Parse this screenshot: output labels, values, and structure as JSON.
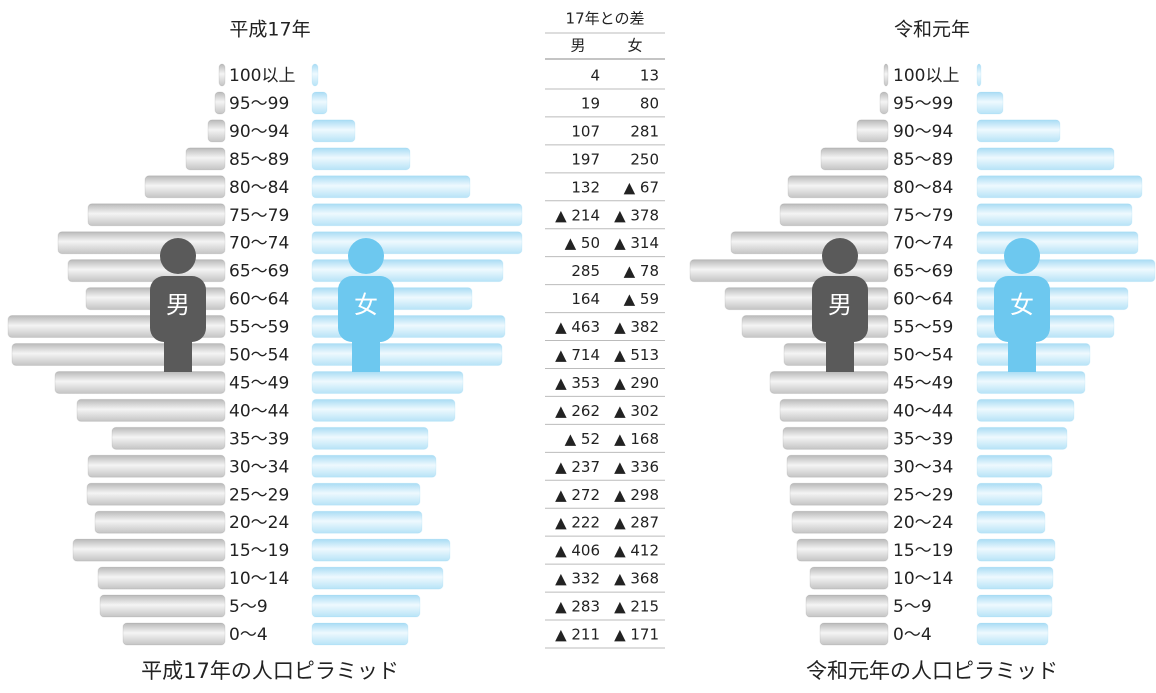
{
  "chart_data": [
    {
      "type": "pyramid",
      "title": "平成17年",
      "caption": "平成17年の人口ピラミッド",
      "categories": [
        "100以上",
        "95～99",
        "90～94",
        "85～89",
        "80～84",
        "75～79",
        "70～74",
        "65～69",
        "60～64",
        "55～59",
        "50～54",
        "45～49",
        "40～44",
        "35～39",
        "30～34",
        "25～29",
        "20～24",
        "15～19",
        "10～14",
        "5～9",
        "0～4"
      ],
      "series": [
        {
          "name": "男",
          "color": "#5a5a5a",
          "values": [
            6,
            10,
            17,
            39,
            80,
            137,
            167,
            157,
            139,
            217,
            213,
            170,
            148,
            113,
            137,
            138,
            130,
            152,
            127,
            125,
            102
          ]
        },
        {
          "name": "女",
          "color": "#6dc8ef",
          "values": [
            6,
            15,
            43,
            98,
            158,
            210,
            210,
            191,
            160,
            193,
            190,
            151,
            143,
            116,
            124,
            108,
            110,
            138,
            131,
            108,
            96
          ]
        }
      ]
    },
    {
      "type": "pyramid",
      "title": "令和元年",
      "caption": "令和元年の人口ピラミッド",
      "categories": [
        "100以上",
        "95～99",
        "90～94",
        "85～89",
        "80～84",
        "75～79",
        "70～74",
        "65～69",
        "60～64",
        "55～59",
        "50～54",
        "45～49",
        "40～44",
        "35～39",
        "30～34",
        "25～29",
        "20～24",
        "15～19",
        "10～14",
        "5～9",
        "0～4"
      ],
      "series": [
        {
          "name": "男",
          "color": "#5a5a5a",
          "values": [
            4,
            8,
            31,
            67,
            100,
            108,
            157,
            198,
            163,
            146,
            104,
            118,
            108,
            105,
            101,
            98,
            96,
            91,
            78,
            82,
            68
          ]
        },
        {
          "name": "女",
          "color": "#6dc8ef",
          "values": [
            4,
            26,
            83,
            137,
            165,
            155,
            161,
            178,
            151,
            137,
            113,
            108,
            97,
            90,
            75,
            65,
            68,
            78,
            76,
            75,
            71
          ]
        }
      ]
    }
  ],
  "table": {
    "title": "17年との差",
    "columns": [
      "男",
      "女"
    ],
    "rows": [
      [
        4,
        13
      ],
      [
        19,
        80
      ],
      [
        107,
        281
      ],
      [
        197,
        250
      ],
      [
        132,
        "▲ 67"
      ],
      [
        "▲ 214",
        "▲ 378"
      ],
      [
        "▲ 50",
        "▲ 314"
      ],
      [
        285,
        "▲ 78"
      ],
      [
        164,
        "▲ 59"
      ],
      [
        "▲ 463",
        "▲ 382"
      ],
      [
        "▲ 714",
        "▲ 513"
      ],
      [
        "▲ 353",
        "▲ 290"
      ],
      [
        "▲ 262",
        "▲ 302"
      ],
      [
        "▲ 52",
        "▲ 168"
      ],
      [
        "▲ 237",
        "▲ 336"
      ],
      [
        "▲ 272",
        "▲ 298"
      ],
      [
        "▲ 222",
        "▲ 287"
      ],
      [
        "▲ 406",
        "▲ 412"
      ],
      [
        "▲ 332",
        "▲ 368"
      ],
      [
        "▲ 283",
        "▲ 215"
      ],
      [
        "▲ 211",
        "▲ 171"
      ]
    ]
  }
}
